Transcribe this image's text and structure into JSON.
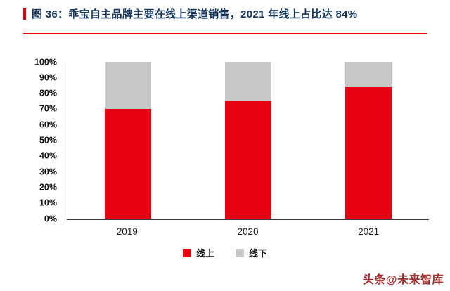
{
  "title": {
    "text": "图 36：乖宝自主品牌主要在线上渠道销售，2021 年线上占比达 84%"
  },
  "chart_data": {
    "type": "bar",
    "subtype": "stacked-100",
    "categories": [
      "2019",
      "2020",
      "2021"
    ],
    "series": [
      {
        "name": "线上",
        "color": "#e60012",
        "values": [
          70,
          75,
          84
        ]
      },
      {
        "name": "线下",
        "color": "#c8c8c8",
        "values": [
          30,
          25,
          16
        ]
      }
    ],
    "title": "乖宝自主品牌主要在线上渠道销售，2021 年线上占比达 84%",
    "xlabel": "",
    "ylabel": "",
    "ylim": [
      0,
      100
    ],
    "yticks": [
      "0%",
      "10%",
      "20%",
      "30%",
      "40%",
      "50%",
      "60%",
      "70%",
      "80%",
      "90%",
      "100%"
    ],
    "grid": false,
    "legend_position": "bottom"
  },
  "watermark": "头条@未来智库",
  "colors": {
    "accent_red": "#e60012",
    "title_color": "#16365c",
    "watermark_red": "#a02c2c",
    "axis_color": "#404040",
    "tick_label_color": "#111111"
  }
}
